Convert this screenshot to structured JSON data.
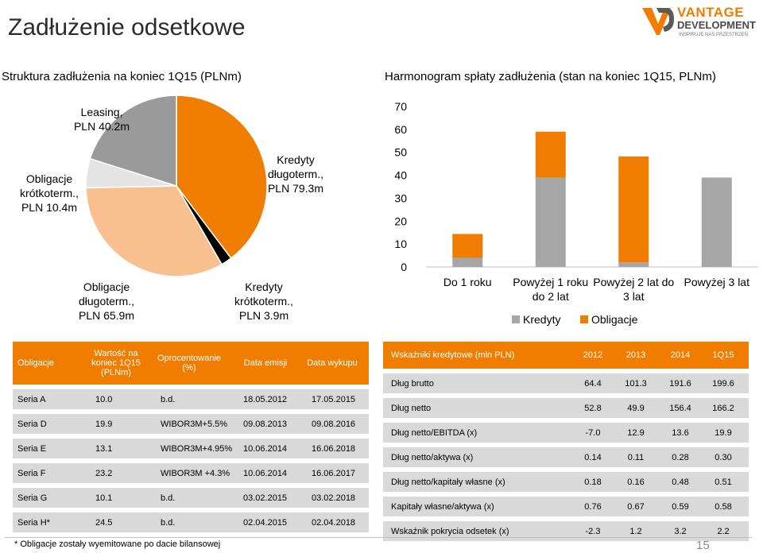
{
  "title": "Zadłużenie odsetkowe",
  "logo": {
    "line1": "VANTAGE",
    "line2": "DEVELOPMENT",
    "tagline": "INSPIRUJE NAS PRZESTRZEŃ",
    "accent": "#f07d00"
  },
  "pie": {
    "subtitle": "Struktura zadłużenia na koniec 1Q15 (PLNm)",
    "chart_data": {
      "type": "pie",
      "slices": [
        {
          "label": "Kredyty długoterm., PLN 79.3m",
          "value": 79.3,
          "color": "#f07d00"
        },
        {
          "label": "Kredyty krótkoterm., PLN 3.9m",
          "value": 3.9,
          "color": "#000000"
        },
        {
          "label": "Obligacje długoterm., PLN 65.9m",
          "value": 65.9,
          "color": "#f8c08f"
        },
        {
          "label": "Obligacje krótkoterm., PLN 10.4m",
          "value": 10.4,
          "color": "#e4e4e4"
        },
        {
          "label": "Leasing, PLN 40.2m",
          "value": 40.2,
          "color": "#9a9a9a"
        }
      ]
    },
    "labels": {
      "kd": [
        "Kredyty",
        "długoterm.,",
        "PLN 79.3m"
      ],
      "kk": [
        "Kredyty",
        "krótkoterm.,",
        "PLN 3.9m"
      ],
      "od": [
        "Obligacje",
        "długoterm.,",
        "PLN 65.9m"
      ],
      "ok": [
        "Obligacje",
        "krótkoterm.,",
        "PLN 10.4m"
      ],
      "le": [
        "Leasing,",
        "PLN 40.2m"
      ]
    }
  },
  "bar": {
    "subtitle": "Harmonogram spłaty zadłużenia (stan na koniec 1Q15, PLNm)",
    "chart_data": {
      "type": "bar",
      "stacked": true,
      "categories": [
        [
          "Do 1 roku"
        ],
        [
          "Powyżej 1 roku",
          "do 2 lat"
        ],
        [
          "Powyżej 2 lat do",
          "3 lat"
        ],
        [
          "Powyżej 3 lat"
        ]
      ],
      "series": [
        {
          "name": "Kredyty",
          "values": [
            4,
            39,
            2,
            39
          ],
          "color": "#a6a6a6"
        },
        {
          "name": "Obligacje",
          "values": [
            10.4,
            20,
            46.2,
            0
          ],
          "color": "#f07d00"
        }
      ],
      "ylim": [
        0,
        70
      ],
      "yticks": [
        0,
        10,
        20,
        30,
        40,
        50,
        60,
        70
      ],
      "legend": "bottom"
    }
  },
  "bonds": {
    "headers": [
      "Obligacje",
      "Wartość na koniec 1Q15 (PLNm)",
      "Oprocentowanie (%)",
      "Data emisji",
      "Data wykupu"
    ],
    "rows": [
      [
        "Seria A",
        "10.0",
        "b.d.",
        "18.05.2012",
        "17.05.2015"
      ],
      [
        "Seria D",
        "19.9",
        "WIBOR3M+5.5%",
        "09.08.2013",
        "09.08.2016"
      ],
      [
        "Seria E",
        "13.1",
        "WIBOR3M+4.95%",
        "10.06.2014",
        "16.06.2018"
      ],
      [
        "Seria F",
        "23.2",
        "WIBOR3M +4.3%",
        "10.06.2014",
        "16.06.2017"
      ],
      [
        "Seria G",
        "10.1",
        "b.d.",
        "03.02.2015",
        "03.02.2018"
      ],
      [
        "Seria H*",
        "24.5",
        "b.d.",
        "02.04.2015",
        "02.04.2018"
      ]
    ],
    "footnote": "* Obligacje zostały wyemitowane po dacie bilansowej"
  },
  "ratios": {
    "headers": [
      "Wskaźniki kredytowe (mln PLN)",
      "2012",
      "2013",
      "2014",
      "1Q15"
    ],
    "rows": [
      [
        "Dług brutto",
        "64.4",
        "101.3",
        "191.6",
        "199.6"
      ],
      [
        "Dług netto",
        "52.8",
        "49.9",
        "156.4",
        "166.2"
      ],
      [
        "Dług netto/EBITDA (x)",
        "-7.0",
        "12.9",
        "13.6",
        "19.9"
      ],
      [
        "Dług netto/aktywa (x)",
        "0.14",
        "0.11",
        "0.28",
        "0.30"
      ],
      [
        "Dług netto/kapitały własne (x)",
        "0.18",
        "0.16",
        "0.48",
        "0.51"
      ],
      [
        "Kapitały własne/aktywa (x)",
        "0.76",
        "0.67",
        "0.59",
        "0.58"
      ],
      [
        "Wskaźnik pokrycia odsetek (x)",
        "-2.3",
        "1.2",
        "3.2",
        "2.2"
      ]
    ]
  },
  "page_number": "15"
}
